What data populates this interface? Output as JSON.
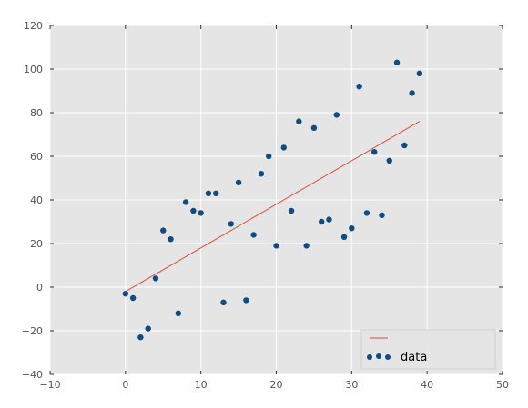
{
  "chart_data": {
    "type": "scatter",
    "title": "",
    "xlabel": "",
    "ylabel": "",
    "xlim": [
      -10,
      50
    ],
    "ylim": [
      -40,
      120
    ],
    "xticks": [
      -10,
      0,
      10,
      20,
      30,
      40,
      50
    ],
    "yticks": [
      -40,
      -20,
      0,
      20,
      40,
      60,
      80,
      100,
      120
    ],
    "grid": true,
    "legend_placement": "lower-right",
    "colors": {
      "background": "#e5e5e5",
      "grid": "#ffffff",
      "points": "#0f4c81",
      "line": "#e24a33"
    },
    "series": [
      {
        "kind": "line",
        "legend_label": "",
        "x": [
          0,
          39
        ],
        "y": [
          -2,
          76
        ]
      },
      {
        "kind": "scatter",
        "legend_label": "data",
        "points": [
          [
            0,
            -3
          ],
          [
            1,
            -5
          ],
          [
            2,
            -23
          ],
          [
            3,
            -19
          ],
          [
            4,
            4
          ],
          [
            5,
            26
          ],
          [
            6,
            22
          ],
          [
            7,
            -12
          ],
          [
            8,
            39
          ],
          [
            9,
            35
          ],
          [
            10,
            34
          ],
          [
            11,
            43
          ],
          [
            12,
            43
          ],
          [
            13,
            -7
          ],
          [
            14,
            29
          ],
          [
            15,
            48
          ],
          [
            16,
            -6
          ],
          [
            17,
            24
          ],
          [
            18,
            52
          ],
          [
            19,
            60
          ],
          [
            20,
            19
          ],
          [
            21,
            64
          ],
          [
            22,
            35
          ],
          [
            23,
            76
          ],
          [
            24,
            19
          ],
          [
            25,
            73
          ],
          [
            26,
            30
          ],
          [
            27,
            31
          ],
          [
            28,
            79
          ],
          [
            29,
            23
          ],
          [
            30,
            27
          ],
          [
            31,
            92
          ],
          [
            32,
            34
          ],
          [
            33,
            62
          ],
          [
            34,
            33
          ],
          [
            35,
            58
          ],
          [
            36,
            103
          ],
          [
            37,
            65
          ],
          [
            38,
            89
          ],
          [
            39,
            98
          ]
        ]
      }
    ]
  }
}
